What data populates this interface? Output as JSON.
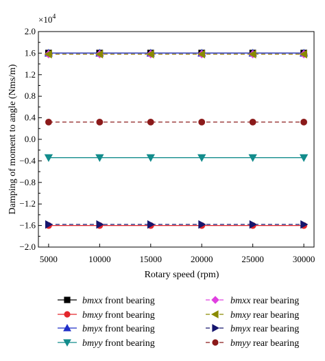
{
  "chart_data": {
    "type": "line",
    "multiplier_label": "×10",
    "multiplier_exp": "4",
    "xlabel": "Rotary speed (rpm)",
    "ylabel": "Damping of moment to angle (Nms/m)",
    "ylim": [
      -2.0,
      2.0
    ],
    "xlim": [
      4000,
      31000
    ],
    "grid": false,
    "legend_placement": "bottom",
    "x": [
      5000,
      10000,
      15000,
      20000,
      25000,
      30000
    ],
    "x_tick_labels": [
      "5000",
      "10000",
      "15000",
      "20000",
      "25000",
      "30000"
    ],
    "y_ticks": [
      -2.0,
      -1.6,
      -1.2,
      -0.8,
      -0.4,
      0.0,
      0.4,
      0.8,
      1.2,
      1.6,
      2.0
    ],
    "y_tick_labels": [
      "−2.0",
      "−1.6",
      "−1.2",
      "−0.8",
      "−0.4",
      "0.0",
      "0.4",
      "0.8",
      "1.2",
      "1.6",
      "2.0"
    ],
    "series": [
      {
        "name": "front bearing",
        "coef": "bmxx",
        "color": "#000000",
        "marker": "square",
        "dash": false,
        "values": [
          1.6,
          1.6,
          1.6,
          1.6,
          1.6,
          1.6
        ]
      },
      {
        "name": "front bearing",
        "coef": "bmxy",
        "color": "#e3262b",
        "marker": "circle",
        "dash": false,
        "values": [
          -1.6,
          -1.6,
          -1.6,
          -1.6,
          -1.6,
          -1.6
        ]
      },
      {
        "name": "front bearing",
        "coef": "bmyx",
        "color": "#1f2fc8",
        "marker": "triangle-up",
        "dash": false,
        "values": [
          1.6,
          1.6,
          1.6,
          1.6,
          1.6,
          1.6
        ]
      },
      {
        "name": "front bearing",
        "coef": "bmyy",
        "color": "#138c8c",
        "marker": "triangle-down",
        "dash": false,
        "values": [
          -0.34,
          -0.34,
          -0.34,
          -0.34,
          -0.34,
          -0.34
        ]
      },
      {
        "name": "rear bearing",
        "coef": "bmxx",
        "color": "#e040e0",
        "marker": "diamond",
        "dash": true,
        "values": [
          1.58,
          1.58,
          1.58,
          1.58,
          1.58,
          1.58
        ]
      },
      {
        "name": "rear bearing",
        "coef": "bmxy",
        "color": "#8a8a00",
        "marker": "triangle-left",
        "dash": true,
        "values": [
          1.58,
          1.58,
          1.58,
          1.58,
          1.58,
          1.58
        ]
      },
      {
        "name": "rear bearing",
        "coef": "bmyx",
        "color": "#16166e",
        "marker": "triangle-right",
        "dash": true,
        "values": [
          -1.58,
          -1.58,
          -1.58,
          -1.58,
          -1.58,
          -1.58
        ]
      },
      {
        "name": "rear bearing",
        "coef": "bmyy",
        "color": "#8b1a1a",
        "marker": "circle",
        "dash": true,
        "values": [
          0.32,
          0.32,
          0.32,
          0.32,
          0.32,
          0.32
        ]
      }
    ]
  }
}
